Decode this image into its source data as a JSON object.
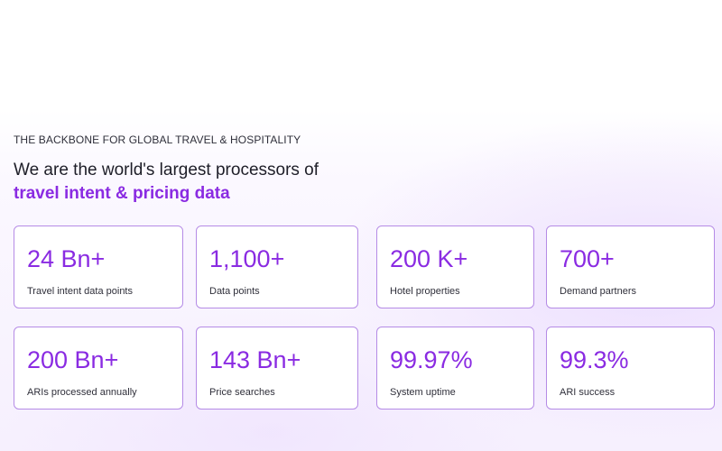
{
  "hero": {
    "eyebrow": "THE BACKBONE FOR GLOBAL TRAVEL & HOSPITALITY",
    "headline_line1": "We are the world's largest processors of",
    "headline_line2": "travel intent & pricing data"
  },
  "colors": {
    "accent": "#8a2be2",
    "card_border": "#b58be6",
    "text": "#2f2f3a"
  },
  "stats": [
    {
      "value": "24 Bn+",
      "label": "Travel intent data points"
    },
    {
      "value": "1,100+",
      "label": "Data points"
    },
    {
      "value": "200 K+",
      "label": "Hotel properties"
    },
    {
      "value": "700+",
      "label": "Demand partners"
    },
    {
      "value": "200 Bn+",
      "label": "ARIs processed annually"
    },
    {
      "value": "143 Bn+",
      "label": "Price searches"
    },
    {
      "value": "99.97%",
      "label": "System uptime"
    },
    {
      "value": "99.3%",
      "label": "ARI success"
    }
  ]
}
